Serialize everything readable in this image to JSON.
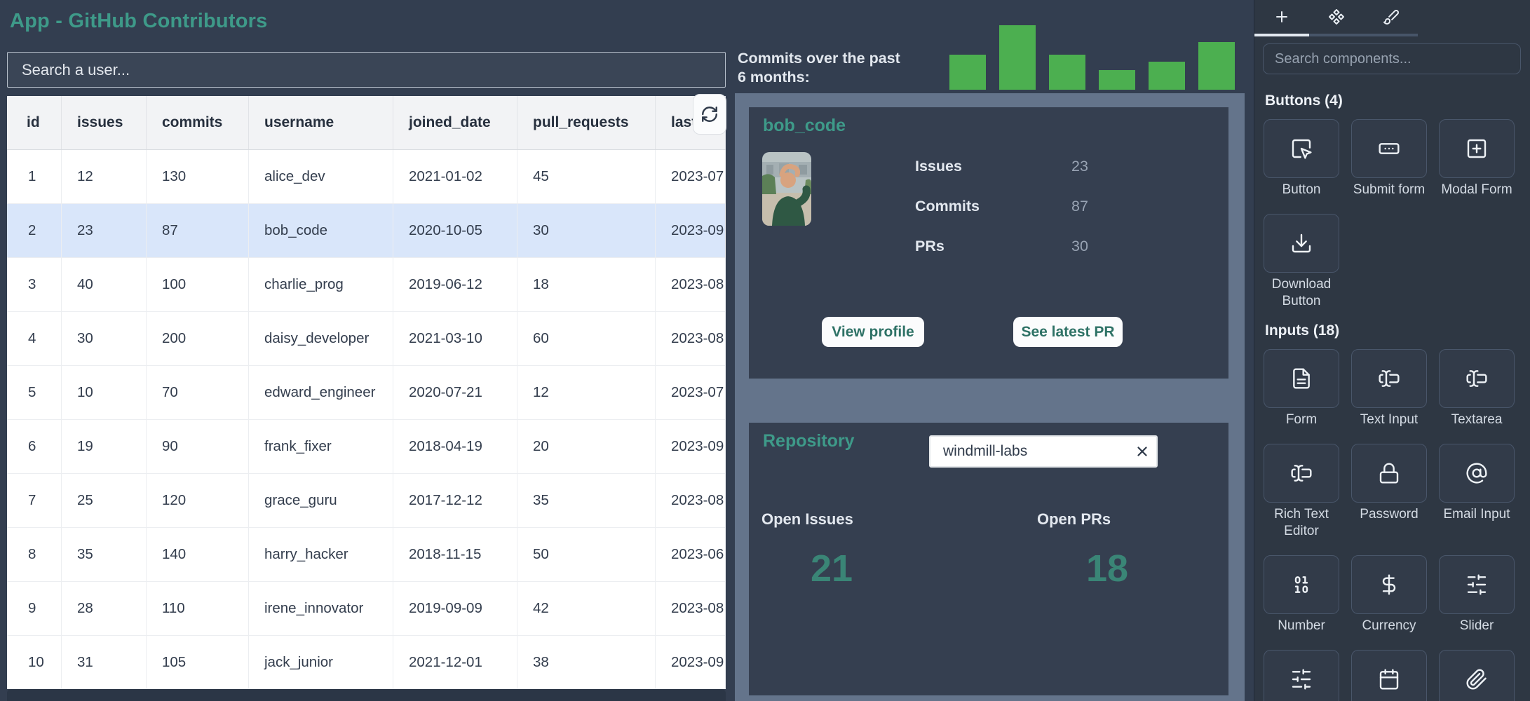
{
  "app": {
    "title": "App - GitHub Contributors",
    "accent_color": "#3E9A89",
    "background_color": "#333E50"
  },
  "user_table": {
    "search_placeholder": "Search a user...",
    "refresh_icon": "refresh",
    "columns": [
      "id",
      "issues",
      "commits",
      "username",
      "joined_date",
      "pull_requests",
      "last_active"
    ],
    "selected_id": 2,
    "rows": [
      [
        "1",
        "12",
        "130",
        "alice_dev",
        "2021-01-02",
        "45",
        "2023-07"
      ],
      [
        "2",
        "23",
        "87",
        "bob_code",
        "2020-10-05",
        "30",
        "2023-09"
      ],
      [
        "3",
        "40",
        "100",
        "charlie_prog",
        "2019-06-12",
        "18",
        "2023-08"
      ],
      [
        "4",
        "30",
        "200",
        "daisy_developer",
        "2021-03-10",
        "60",
        "2023-08"
      ],
      [
        "5",
        "10",
        "70",
        "edward_engineer",
        "2020-07-21",
        "12",
        "2023-07"
      ],
      [
        "6",
        "19",
        "90",
        "frank_fixer",
        "2018-04-19",
        "20",
        "2023-09"
      ],
      [
        "7",
        "25",
        "120",
        "grace_guru",
        "2017-12-12",
        "35",
        "2023-08"
      ],
      [
        "8",
        "35",
        "140",
        "harry_hacker",
        "2018-11-15",
        "50",
        "2023-06"
      ],
      [
        "9",
        "28",
        "110",
        "irene_innovator",
        "2019-09-09",
        "42",
        "2023-08"
      ],
      [
        "10",
        "31",
        "105",
        "jack_junior",
        "2021-12-01",
        "38",
        "2023-09"
      ]
    ]
  },
  "chart_data": {
    "type": "bar",
    "title": "Commits over the past 6 months:",
    "categories": [
      "",
      "",
      "",
      "",
      "",
      ""
    ],
    "values": [
      50,
      92,
      50,
      28,
      40,
      68
    ],
    "color": "#4CAF50",
    "xlabel": "",
    "ylabel": "",
    "axes_shown": false,
    "grid": false,
    "legend": false
  },
  "user_card": {
    "username": "bob_code",
    "avatar": "photo of contributor",
    "stats": [
      {
        "label": "Issues",
        "value": "23"
      },
      {
        "label": "Commits",
        "value": "87"
      },
      {
        "label": "PRs",
        "value": "30"
      }
    ],
    "buttons": [
      "View profile",
      "See latest PR"
    ]
  },
  "repository_card": {
    "title": "Repository",
    "input_value": "windmill-labs",
    "clear_icon": "x",
    "metrics": [
      {
        "label": "Open Issues",
        "value": "21"
      },
      {
        "label": "Open PRs",
        "value": "18"
      }
    ]
  },
  "component_panel": {
    "search_placeholder": "Search components...",
    "tabs": [
      {
        "icon": "plus",
        "active": true
      },
      {
        "icon": "component",
        "active": false
      },
      {
        "icon": "brush",
        "active": false
      }
    ],
    "sections": [
      {
        "title": "Buttons (4)",
        "items": [
          {
            "label": "Button",
            "icon": "cursor-click"
          },
          {
            "label": "Submit form",
            "icon": "submit-form"
          },
          {
            "label": "Modal Form",
            "icon": "modal-plus"
          },
          {
            "label": "Download Button",
            "icon": "download"
          }
        ]
      },
      {
        "title": "Inputs (18)",
        "items": [
          {
            "label": "Form",
            "icon": "document"
          },
          {
            "label": "Text Input",
            "icon": "text-cursor"
          },
          {
            "label": "Textarea",
            "icon": "text-cursor"
          },
          {
            "label": "Rich Text Editor",
            "icon": "text-cursor"
          },
          {
            "label": "Password",
            "icon": "lock"
          },
          {
            "label": "Email Input",
            "icon": "at-sign"
          },
          {
            "label": "Number",
            "icon": "binary"
          },
          {
            "label": "Currency",
            "icon": "dollar"
          },
          {
            "label": "Slider",
            "icon": "sliders"
          },
          {
            "label": "",
            "icon": "sliders"
          },
          {
            "label": "",
            "icon": "calendar"
          },
          {
            "label": "",
            "icon": "paperclip"
          }
        ]
      }
    ]
  }
}
